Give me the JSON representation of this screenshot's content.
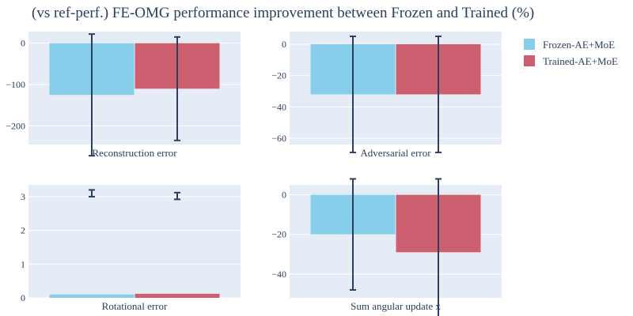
{
  "chart_data": {
    "type": "bar",
    "title": "(vs ref-perf.) FE-OMG performance improvement between Frozen and Trained (%)",
    "legend": {
      "position": "top-right",
      "items": [
        {
          "name": "Frozen-AE+MoE",
          "color": "#87ceeb"
        },
        {
          "name": "Trained-AE+MoE",
          "color": "#cd6070"
        }
      ]
    },
    "colors": {
      "plot_bg": "#e5ecf6",
      "grid": "#ffffff",
      "error_bar": "#2a3f5f",
      "text": "#2a3f5f"
    },
    "grid": true,
    "subplots": [
      {
        "category": "Reconstruction error",
        "ylim": [
          -245,
          28
        ],
        "yticks": [
          0,
          -100,
          -200
        ],
        "ytick_labels": [
          "0",
          "−100",
          "−200"
        ],
        "series": [
          {
            "name": "Frozen-AE+MoE",
            "value": -125,
            "error": 147
          },
          {
            "name": "Trained-AE+MoE",
            "value": -110,
            "error": 125
          }
        ]
      },
      {
        "category": "Adversarial error",
        "ylim": [
          -64,
          8
        ],
        "yticks": [
          0,
          -20,
          -40,
          -60
        ],
        "ytick_labels": [
          "0",
          "−20",
          "−40",
          "−60"
        ],
        "series": [
          {
            "name": "Frozen-AE+MoE",
            "value": -32,
            "error": 37
          },
          {
            "name": "Trained-AE+MoE",
            "value": -32,
            "error": 37
          }
        ]
      },
      {
        "category": "Rotational error",
        "ylim": [
          0,
          3.35
        ],
        "yticks": [
          0,
          1,
          2,
          3
        ],
        "ytick_labels": [
          "0",
          "1",
          "2",
          "3"
        ],
        "series": [
          {
            "name": "Frozen-AE+MoE",
            "value": 0.1,
            "error_low": 3.0,
            "error_high": 3.2
          },
          {
            "name": "Trained-AE+MoE",
            "value": 0.12,
            "error_low": 2.92,
            "error_high": 3.12
          }
        ]
      },
      {
        "category": "Sum angular update x",
        "ylim": [
          -52,
          5
        ],
        "yticks": [
          0,
          -20,
          -40
        ],
        "ytick_labels": [
          "0",
          "−20",
          "−40"
        ],
        "series": [
          {
            "name": "Frozen-AE+MoE",
            "value": -20,
            "error": 28
          },
          {
            "name": "Trained-AE+MoE",
            "value": -29,
            "error": 37
          }
        ]
      }
    ]
  }
}
